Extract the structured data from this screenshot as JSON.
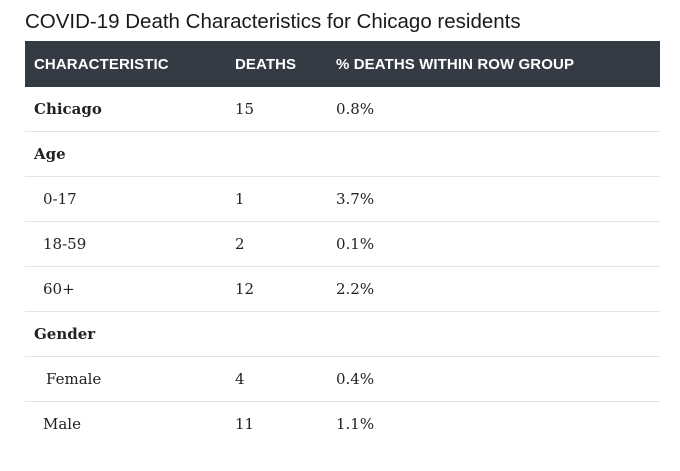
{
  "title": "COVID-19 Death Characteristics for Chicago residents",
  "table": {
    "headers": [
      "CHARACTERISTIC",
      "DEATHS",
      "% DEATHS WITHIN ROW GROUP"
    ],
    "rows": [
      {
        "label": "Chicago",
        "deaths": "15",
        "pct": "0.8%"
      },
      {
        "label": "Age",
        "deaths": "",
        "pct": ""
      },
      {
        "label": "0-17",
        "deaths": "1",
        "pct": "3.7%"
      },
      {
        "label": "18-59",
        "deaths": "2",
        "pct": "0.1%"
      },
      {
        "label": "60+",
        "deaths": "12",
        "pct": "2.2%"
      },
      {
        "label": "Gender",
        "deaths": "",
        "pct": ""
      },
      {
        "label": "Female",
        "deaths": "4",
        "pct": "0.4%"
      },
      {
        "label": "Male",
        "deaths": "11",
        "pct": "1.1%"
      }
    ]
  }
}
